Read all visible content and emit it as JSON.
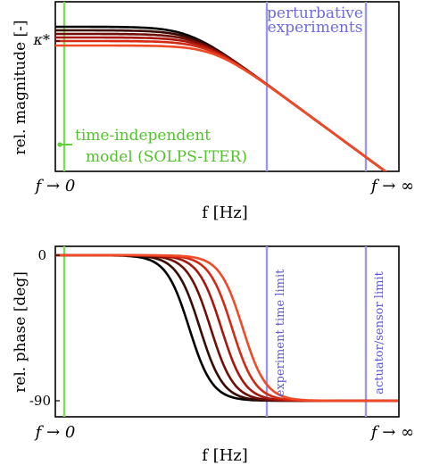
{
  "chart_data": [
    {
      "type": "line",
      "title": "",
      "xlabel": "f [Hz]",
      "ylabel": "rel. magnitude [-]",
      "xtick_labels": [
        "f → 0",
        "f → ∞"
      ],
      "ytick_labels": [
        "κ*"
      ],
      "scale": "log-log (schematic)",
      "grid": false,
      "legend": "none",
      "series_colors": [
        "#000000",
        "#3a0a05",
        "#700f08",
        "#a8160c",
        "#d42a14",
        "#f04a26"
      ],
      "annotations": {
        "model_label": [
          "time-independent",
          "model (SOLPS-ITER)"
        ],
        "experiment_label": [
          "perturbative",
          "experiments"
        ]
      },
      "vertical_lines": [
        {
          "role": "model",
          "color": "#7cde57"
        },
        {
          "role": "experiment time limit",
          "color": "#9a97ec"
        },
        {
          "role": "actuator/sensor limit",
          "color": "#9a97ec"
        }
      ]
    },
    {
      "type": "line",
      "title": "",
      "xlabel": "f [Hz]",
      "ylabel": "rel. phase [deg]",
      "xtick_labels": [
        "f → 0",
        "f → ∞"
      ],
      "ytick_labels": [
        "0",
        "-90"
      ],
      "ylim": [
        -90,
        0
      ],
      "grid": false,
      "legend": "none",
      "series_colors": [
        "#000000",
        "#3a0a05",
        "#700f08",
        "#a8160c",
        "#d42a14",
        "#f04a26"
      ],
      "annotations": {
        "limit_labels": [
          "experiment time limit",
          "actuator/sensor limit"
        ]
      },
      "vertical_lines": [
        {
          "role": "model",
          "color": "#7cde57"
        },
        {
          "role": "experiment time limit",
          "color": "#9a97ec"
        },
        {
          "role": "actuator/sensor limit",
          "color": "#9a97ec"
        }
      ]
    }
  ]
}
